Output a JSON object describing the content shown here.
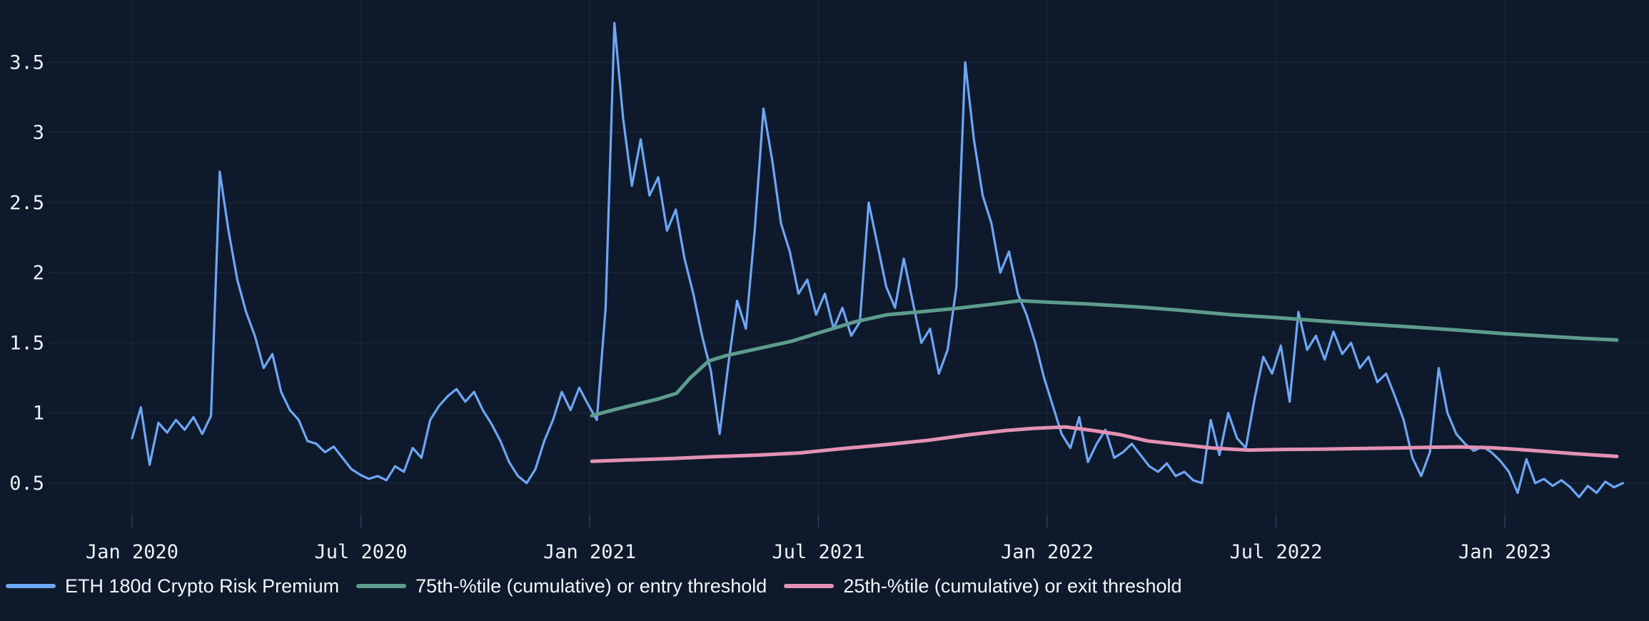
{
  "page": {
    "background": "#0e1a2b",
    "grid_color": "rgba(145,175,220,0.10)",
    "tick_color": "rgba(145,175,220,0.18)",
    "text_color": "#eef2f7"
  },
  "chart_data": {
    "type": "line",
    "title": "",
    "xlabel": "",
    "ylabel": "",
    "grid": true,
    "legend_position": "bottom-left",
    "x_axis": {
      "unit": "date (decimal years)",
      "range": [
        2019.82,
        2023.32
      ],
      "ticks": [
        {
          "t": 2020.0,
          "label": "Jan 2020"
        },
        {
          "t": 2020.5,
          "label": "Jul 2020"
        },
        {
          "t": 2021.0,
          "label": "Jan 2021"
        },
        {
          "t": 2021.5,
          "label": "Jul 2021"
        },
        {
          "t": 2022.0,
          "label": "Jan 2022"
        },
        {
          "t": 2022.5,
          "label": "Jul 2022"
        },
        {
          "t": 2023.0,
          "label": "Jan 2023"
        }
      ]
    },
    "y_axis": {
      "range": [
        0.25,
        3.95
      ],
      "ticks": [
        {
          "v": 0.5,
          "label": "0.5"
        },
        {
          "v": 1,
          "label": "1"
        },
        {
          "v": 1.5,
          "label": "1.5"
        },
        {
          "v": 2,
          "label": "2"
        },
        {
          "v": 2.5,
          "label": "2.5"
        },
        {
          "v": 3,
          "label": "3"
        },
        {
          "v": 3.5,
          "label": "3.5"
        }
      ]
    },
    "series": [
      {
        "name": "ETH 180d Crypto Risk Premium",
        "color": "#6ea6f6",
        "stroke_width": 3.2,
        "sampling": "weekly",
        "t_start": 2020.0,
        "t_step": 0.019165,
        "values": [
          0.82,
          1.04,
          0.63,
          0.93,
          0.86,
          0.95,
          0.88,
          0.97,
          0.85,
          0.98,
          2.72,
          2.3,
          1.95,
          1.72,
          1.55,
          1.32,
          1.42,
          1.15,
          1.02,
          0.95,
          0.8,
          0.78,
          0.72,
          0.76,
          0.68,
          0.6,
          0.56,
          0.53,
          0.55,
          0.52,
          0.62,
          0.58,
          0.75,
          0.68,
          0.95,
          1.05,
          1.12,
          1.17,
          1.08,
          1.15,
          1.02,
          0.92,
          0.8,
          0.65,
          0.55,
          0.5,
          0.6,
          0.8,
          0.95,
          1.15,
          1.02,
          1.18,
          1.06,
          0.95,
          1.75,
          3.78,
          3.1,
          2.62,
          2.95,
          2.55,
          2.68,
          2.3,
          2.45,
          2.1,
          1.85,
          1.55,
          1.3,
          0.85,
          1.35,
          1.8,
          1.6,
          2.3,
          3.17,
          2.8,
          2.35,
          2.15,
          1.85,
          1.95,
          1.7,
          1.85,
          1.6,
          1.75,
          1.55,
          1.65,
          2.5,
          2.2,
          1.9,
          1.75,
          2.1,
          1.8,
          1.5,
          1.6,
          1.28,
          1.45,
          1.9,
          3.5,
          2.95,
          2.55,
          2.35,
          2.0,
          2.15,
          1.85,
          1.7,
          1.5,
          1.25,
          1.05,
          0.85,
          0.75,
          0.97,
          0.65,
          0.78,
          0.88,
          0.68,
          0.72,
          0.78,
          0.7,
          0.62,
          0.58,
          0.64,
          0.55,
          0.58,
          0.52,
          0.5,
          0.95,
          0.7,
          1.0,
          0.82,
          0.75,
          1.1,
          1.4,
          1.28,
          1.48,
          1.08,
          1.72,
          1.45,
          1.55,
          1.38,
          1.58,
          1.42,
          1.5,
          1.32,
          1.4,
          1.22,
          1.28,
          1.12,
          0.95,
          0.68,
          0.55,
          0.72,
          1.32,
          1.0,
          0.85,
          0.78,
          0.73,
          0.76,
          0.72,
          0.66,
          0.58,
          0.43,
          0.67,
          0.5,
          0.53,
          0.48,
          0.52,
          0.47,
          0.4,
          0.48,
          0.43,
          0.51,
          0.47,
          0.5
        ]
      },
      {
        "name": "75th-%tile (cumulative) or entry threshold",
        "color": "#5e9c8d",
        "stroke_width": 5,
        "points": [
          [
            2021.005,
            0.98
          ],
          [
            2021.05,
            1.02
          ],
          [
            2021.1,
            1.06
          ],
          [
            2021.15,
            1.1
          ],
          [
            2021.19,
            1.14
          ],
          [
            2021.22,
            1.25
          ],
          [
            2021.26,
            1.37
          ],
          [
            2021.3,
            1.41
          ],
          [
            2021.37,
            1.46
          ],
          [
            2021.44,
            1.51
          ],
          [
            2021.5,
            1.57
          ],
          [
            2021.58,
            1.65
          ],
          [
            2021.65,
            1.7
          ],
          [
            2021.72,
            1.72
          ],
          [
            2021.8,
            1.745
          ],
          [
            2021.88,
            1.775
          ],
          [
            2021.94,
            1.8
          ],
          [
            2022.0,
            1.79
          ],
          [
            2022.1,
            1.775
          ],
          [
            2022.2,
            1.755
          ],
          [
            2022.3,
            1.73
          ],
          [
            2022.4,
            1.7
          ],
          [
            2022.5,
            1.68
          ],
          [
            2022.6,
            1.655
          ],
          [
            2022.7,
            1.632
          ],
          [
            2022.8,
            1.612
          ],
          [
            2022.9,
            1.59
          ],
          [
            2023.0,
            1.565
          ],
          [
            2023.1,
            1.545
          ],
          [
            2023.18,
            1.53
          ],
          [
            2023.245,
            1.52
          ]
        ]
      },
      {
        "name": "25th-%tile (cumulative) or exit threshold",
        "color": "#e391b4",
        "stroke_width": 5,
        "points": [
          [
            2021.005,
            0.655
          ],
          [
            2021.09,
            0.665
          ],
          [
            2021.18,
            0.675
          ],
          [
            2021.27,
            0.688
          ],
          [
            2021.37,
            0.7
          ],
          [
            2021.46,
            0.715
          ],
          [
            2021.55,
            0.745
          ],
          [
            2021.65,
            0.775
          ],
          [
            2021.74,
            0.805
          ],
          [
            2021.83,
            0.845
          ],
          [
            2021.91,
            0.875
          ],
          [
            2021.97,
            0.89
          ],
          [
            2022.04,
            0.9
          ],
          [
            2022.1,
            0.875
          ],
          [
            2022.16,
            0.845
          ],
          [
            2022.22,
            0.8
          ],
          [
            2022.29,
            0.775
          ],
          [
            2022.36,
            0.75
          ],
          [
            2022.44,
            0.735
          ],
          [
            2022.52,
            0.74
          ],
          [
            2022.6,
            0.742
          ],
          [
            2022.68,
            0.746
          ],
          [
            2022.76,
            0.75
          ],
          [
            2022.84,
            0.755
          ],
          [
            2022.9,
            0.758
          ],
          [
            2022.97,
            0.752
          ],
          [
            2023.03,
            0.74
          ],
          [
            2023.09,
            0.725
          ],
          [
            2023.15,
            0.71
          ],
          [
            2023.21,
            0.697
          ],
          [
            2023.245,
            0.69
          ]
        ]
      }
    ]
  }
}
